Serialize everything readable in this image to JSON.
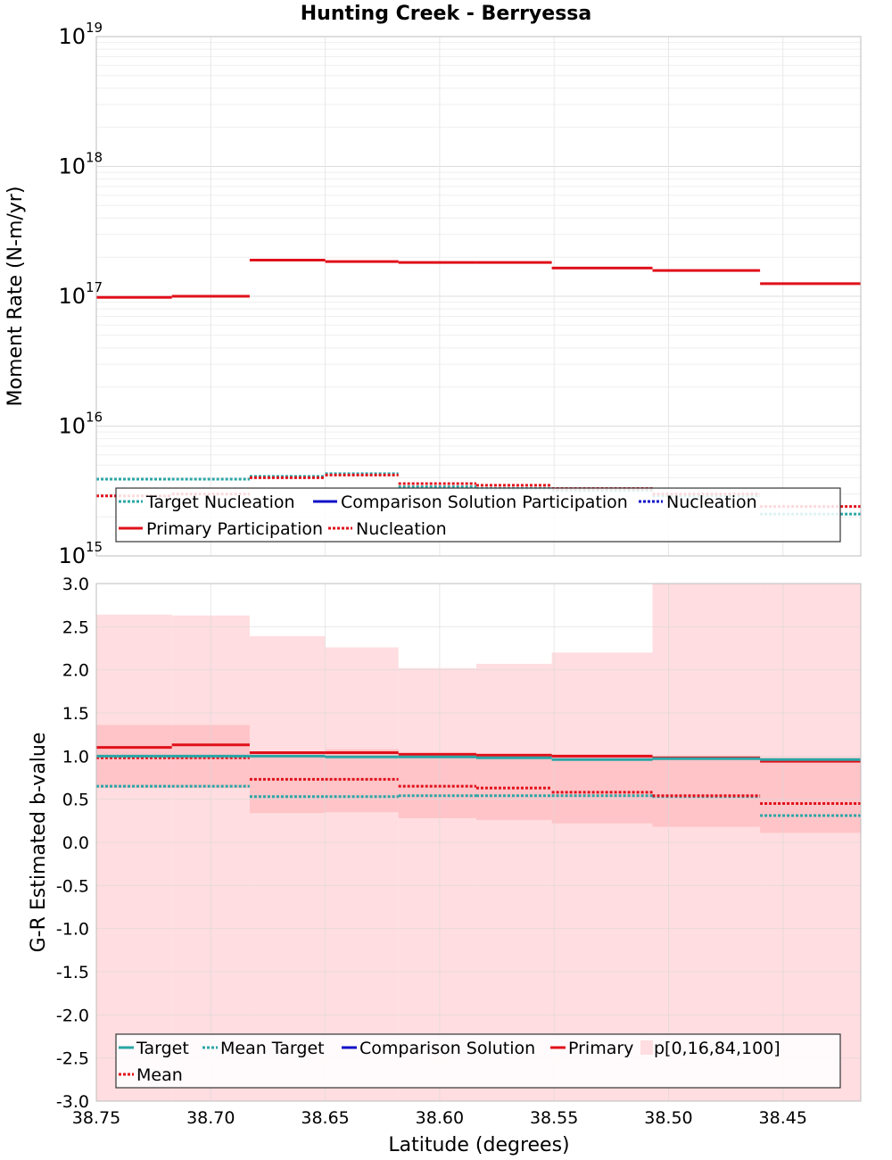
{
  "title": "Hunting Creek - Berryessa",
  "colors": {
    "target": "#2aa6a6",
    "comparison": "#1010c8",
    "primary": "#e0101a",
    "band_outer": "#ffdde0",
    "band_inner": "#ffc4c8",
    "grid": "#e4e4e4"
  },
  "chart_data": [
    {
      "type": "line",
      "step": true,
      "ylabel": "Moment Rate (N-m/yr)",
      "xlabel": "",
      "yscale": "log",
      "ylim": [
        1000000000000000.0,
        1e+19
      ],
      "xlim": [
        38.75,
        38.416
      ],
      "x_reversed": true,
      "y_ticks": [
        {
          "base": "10",
          "exp": "15"
        },
        {
          "base": "10",
          "exp": "16"
        },
        {
          "base": "10",
          "exp": "17"
        },
        {
          "base": "10",
          "exp": "18"
        },
        {
          "base": "10",
          "exp": "19"
        }
      ],
      "grid": true,
      "legend": {
        "location": "lower-center",
        "entries": [
          {
            "label": "Target Nucleation",
            "style": "dotted",
            "color": "target"
          },
          {
            "label": "Comparison Solution Participation",
            "style": "solid",
            "color": "comparison"
          },
          {
            "label": "Nucleation",
            "style": "dotted",
            "color": "comparison"
          },
          {
            "label": "Primary Participation",
            "style": "solid",
            "color": "primary"
          },
          {
            "label": "Nucleation",
            "style": "dotted",
            "color": "primary"
          }
        ]
      },
      "bin_edges": [
        38.75,
        38.717,
        38.683,
        38.65,
        38.618,
        38.584,
        38.551,
        38.507,
        38.46,
        38.416
      ],
      "series": [
        {
          "name": "Primary Participation",
          "values": [
            9.8e+16,
            1e+17,
            1.9e+17,
            1.85e+17,
            1.82e+17,
            1.82e+17,
            1.65e+17,
            1.58e+17,
            1.25e+17
          ]
        },
        {
          "name": "Nucleation",
          "values": [
            2900000000000000.0,
            3000000000000000.0,
            4000000000000000.0,
            4200000000000000.0,
            3600000000000000.0,
            3500000000000000.0,
            3300000000000000.0,
            3000000000000000.0,
            2400000000000000.0
          ]
        },
        {
          "name": "Target Nucleation",
          "values": [
            3900000000000000.0,
            3900000000000000.0,
            4100000000000000.0,
            4300000000000000.0,
            3400000000000000.0,
            3300000000000000.0,
            3200000000000000.0,
            2900000000000000.0,
            2100000000000000.0
          ]
        }
      ]
    },
    {
      "type": "line",
      "step": true,
      "xlabel": "Latitude (degrees)",
      "ylabel": "G-R Estimated b-value",
      "ylim": [
        -3.0,
        3.0
      ],
      "xlim": [
        38.75,
        38.416
      ],
      "x_reversed": true,
      "y_ticks": [
        "3.0",
        "2.5",
        "2.0",
        "1.5",
        "1.0",
        "0.5",
        "0.0",
        "-0.5",
        "-1.0",
        "-1.5",
        "-2.0",
        "-2.5",
        "-3.0"
      ],
      "y_tick_values": [
        3.0,
        2.5,
        2.0,
        1.5,
        1.0,
        0.5,
        0.0,
        -0.5,
        -1.0,
        -1.5,
        -2.0,
        -2.5,
        -3.0
      ],
      "x_ticks": [
        "38.75",
        "38.70",
        "38.65",
        "38.60",
        "38.55",
        "38.50",
        "38.45"
      ],
      "x_tick_values": [
        38.75,
        38.7,
        38.65,
        38.6,
        38.55,
        38.5,
        38.45
      ],
      "grid": true,
      "legend": {
        "location": "lower-center",
        "entries": [
          {
            "label": "Target",
            "style": "solid",
            "color": "target"
          },
          {
            "label": "Mean Target",
            "style": "dotted",
            "color": "target"
          },
          {
            "label": "Comparison Solution",
            "style": "solid",
            "color": "comparison"
          },
          {
            "label": "Primary",
            "style": "solid",
            "color": "primary"
          },
          {
            "label": "p[0,16,84,100]",
            "style": "box",
            "color": "band_outer"
          },
          {
            "label": "Mean",
            "style": "dotted",
            "color": "primary"
          }
        ]
      },
      "bin_edges": [
        38.75,
        38.717,
        38.683,
        38.65,
        38.618,
        38.584,
        38.551,
        38.507,
        38.46,
        38.416
      ],
      "series": [
        {
          "name": "Primary",
          "values": [
            1.1,
            1.13,
            1.04,
            1.04,
            1.02,
            1.01,
            1.0,
            0.98,
            0.94
          ]
        },
        {
          "name": "Mean",
          "values": [
            0.98,
            0.98,
            0.73,
            0.73,
            0.65,
            0.63,
            0.58,
            0.54,
            0.45
          ]
        },
        {
          "name": "Target",
          "values": [
            1.0,
            1.0,
            1.0,
            0.99,
            0.99,
            0.98,
            0.96,
            0.97,
            0.96
          ]
        },
        {
          "name": "Mean Target",
          "values": [
            0.65,
            0.65,
            0.53,
            0.53,
            0.54,
            0.54,
            0.54,
            0.53,
            0.31
          ]
        }
      ],
      "bands": {
        "name": "p[0,16,84,100]",
        "p0": [
          -3.0,
          -3.0,
          -3.0,
          -3.0,
          -3.0,
          -3.0,
          -3.0,
          -3.0,
          -3.0
        ],
        "p16": [
          0.63,
          0.63,
          0.34,
          0.35,
          0.28,
          0.26,
          0.22,
          0.18,
          0.11
        ],
        "p84": [
          1.36,
          1.36,
          1.05,
          1.08,
          1.04,
          1.03,
          1.01,
          0.99,
          0.98
        ],
        "p100": [
          2.64,
          2.63,
          2.39,
          2.26,
          2.02,
          2.07,
          2.2,
          3.0,
          3.0
        ]
      }
    }
  ]
}
